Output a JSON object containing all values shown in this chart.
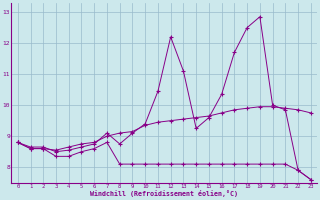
{
  "xlabel": "Windchill (Refroidissement éolien,°C)",
  "background_color": "#cce8ec",
  "line_color": "#880088",
  "grid_color": "#99bbcc",
  "x_values": [
    0,
    1,
    2,
    3,
    4,
    5,
    6,
    7,
    8,
    9,
    10,
    11,
    12,
    13,
    14,
    15,
    16,
    17,
    18,
    19,
    20,
    21,
    22,
    23
  ],
  "line1": [
    8.8,
    8.65,
    8.65,
    8.5,
    8.55,
    8.65,
    8.75,
    9.1,
    8.75,
    9.1,
    9.4,
    10.45,
    12.2,
    11.1,
    9.25,
    9.6,
    10.35,
    11.7,
    12.5,
    12.85,
    10.0,
    9.85,
    7.9,
    7.6
  ],
  "line2": [
    8.8,
    8.6,
    8.6,
    8.35,
    8.35,
    8.5,
    8.6,
    8.8,
    8.1,
    8.1,
    8.1,
    8.1,
    8.1,
    8.1,
    8.1,
    8.1,
    8.1,
    8.1,
    8.1,
    8.1,
    8.1,
    8.1,
    7.9,
    7.6
  ],
  "line3": [
    8.8,
    8.6,
    8.6,
    8.55,
    8.65,
    8.75,
    8.8,
    9.0,
    9.1,
    9.15,
    9.35,
    9.45,
    9.5,
    9.55,
    9.6,
    9.65,
    9.75,
    9.85,
    9.9,
    9.95,
    9.95,
    9.9,
    9.85,
    9.75
  ],
  "xlim": [
    -0.5,
    23.5
  ],
  "ylim": [
    7.5,
    13.3
  ],
  "yticks": [
    8,
    9,
    10,
    11,
    12,
    13
  ],
  "xticks": [
    0,
    1,
    2,
    3,
    4,
    5,
    6,
    7,
    8,
    9,
    10,
    11,
    12,
    13,
    14,
    15,
    16,
    17,
    18,
    19,
    20,
    21,
    22,
    23
  ]
}
